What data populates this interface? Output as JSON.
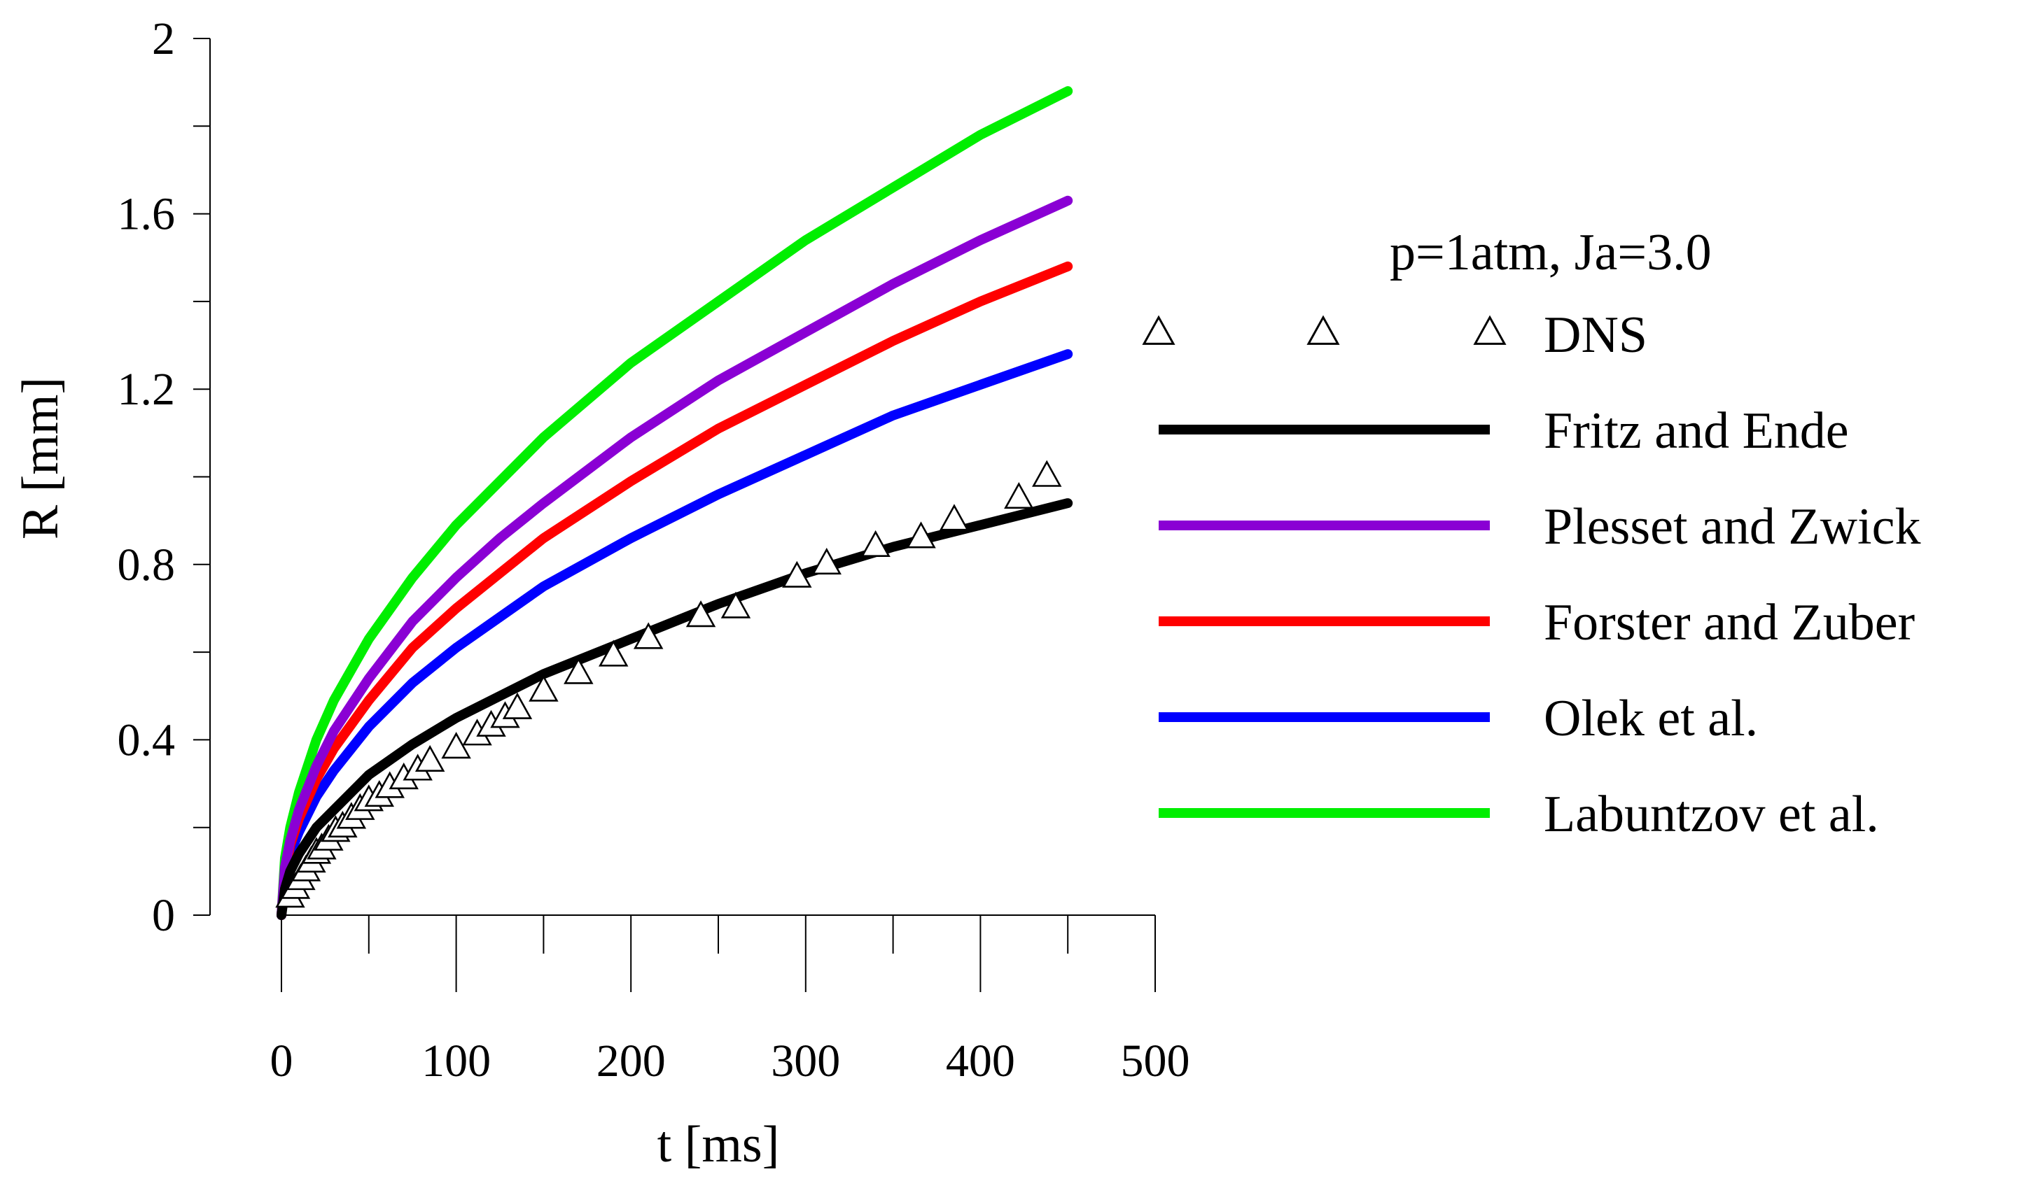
{
  "chart_data": {
    "type": "line",
    "title": "",
    "xlabel": "t [ms]",
    "ylabel": "R [mm]",
    "xlim": [
      0,
      500
    ],
    "ylim": [
      0,
      2
    ],
    "xticks": [
      0,
      100,
      200,
      300,
      400,
      500
    ],
    "xtick_labels": [
      "0",
      "100",
      "200",
      "300",
      "400",
      "500"
    ],
    "xminor": [
      50,
      150,
      250,
      350,
      450
    ],
    "yticks": [
      0,
      0.4,
      0.8,
      1.2,
      1.6,
      2
    ],
    "ytick_labels": [
      "0",
      "0.4",
      "0.8",
      "1.2",
      "1.6",
      "2"
    ],
    "yminor": [
      0.2,
      0.6,
      1.0,
      1.4,
      1.8
    ],
    "annotation": "p=1atm, Ja=3.0",
    "legend_position": "right",
    "series": [
      {
        "name": "DNS",
        "kind": "markers",
        "marker": "triangle",
        "color": "#000000",
        "points": [
          [
            5,
            0.04
          ],
          [
            8,
            0.06
          ],
          [
            11,
            0.08
          ],
          [
            14,
            0.1
          ],
          [
            17,
            0.12
          ],
          [
            20,
            0.14
          ],
          [
            23,
            0.15
          ],
          [
            27,
            0.17
          ],
          [
            31,
            0.19
          ],
          [
            35,
            0.2
          ],
          [
            40,
            0.22
          ],
          [
            45,
            0.24
          ],
          [
            50,
            0.26
          ],
          [
            56,
            0.27
          ],
          [
            62,
            0.29
          ],
          [
            70,
            0.31
          ],
          [
            78,
            0.33
          ],
          [
            85,
            0.35
          ],
          [
            100,
            0.38
          ],
          [
            112,
            0.41
          ],
          [
            120,
            0.43
          ],
          [
            128,
            0.45
          ],
          [
            135,
            0.47
          ],
          [
            150,
            0.51
          ],
          [
            170,
            0.55
          ],
          [
            190,
            0.59
          ],
          [
            210,
            0.63
          ],
          [
            240,
            0.68
          ],
          [
            260,
            0.7
          ],
          [
            295,
            0.77
          ],
          [
            312,
            0.8
          ],
          [
            340,
            0.84
          ],
          [
            366,
            0.86
          ],
          [
            385,
            0.9
          ],
          [
            422,
            0.95
          ],
          [
            438,
            1.0
          ]
        ]
      },
      {
        "name": "Fritz and Ende",
        "kind": "line",
        "color": "#000000",
        "x": [
          0,
          2,
          5,
          10,
          20,
          30,
          50,
          75,
          100,
          125,
          150,
          200,
          250,
          300,
          350,
          400,
          450
        ],
        "values": [
          0,
          0.06,
          0.1,
          0.14,
          0.2,
          0.24,
          0.32,
          0.39,
          0.45,
          0.5,
          0.55,
          0.63,
          0.71,
          0.78,
          0.84,
          0.89,
          0.94
        ]
      },
      {
        "name": "Plesset and Zwick",
        "kind": "line",
        "color": "#8a00d4",
        "x": [
          0,
          2,
          5,
          10,
          20,
          30,
          50,
          75,
          100,
          125,
          150,
          200,
          250,
          300,
          350,
          400,
          450
        ],
        "values": [
          0,
          0.11,
          0.17,
          0.24,
          0.34,
          0.42,
          0.54,
          0.67,
          0.77,
          0.86,
          0.94,
          1.09,
          1.22,
          1.33,
          1.44,
          1.54,
          1.63
        ]
      },
      {
        "name": "Forster and Zuber",
        "kind": "line",
        "color": "#ff0000",
        "x": [
          0,
          2,
          5,
          10,
          20,
          30,
          50,
          75,
          100,
          125,
          150,
          200,
          250,
          300,
          350,
          400,
          450
        ],
        "values": [
          0,
          0.1,
          0.16,
          0.22,
          0.31,
          0.38,
          0.49,
          0.61,
          0.7,
          0.78,
          0.86,
          0.99,
          1.11,
          1.21,
          1.31,
          1.4,
          1.48
        ]
      },
      {
        "name": "Olek et al.",
        "kind": "line",
        "color": "#0000ff",
        "x": [
          0,
          2,
          5,
          10,
          20,
          30,
          50,
          75,
          100,
          125,
          150,
          200,
          250,
          300,
          350,
          400,
          450
        ],
        "values": [
          0,
          0.09,
          0.14,
          0.19,
          0.27,
          0.33,
          0.43,
          0.53,
          0.61,
          0.68,
          0.75,
          0.86,
          0.96,
          1.05,
          1.14,
          1.21,
          1.28
        ]
      },
      {
        "name": "Labuntzov et al.",
        "kind": "line",
        "color": "#00ee00",
        "x": [
          0,
          2,
          5,
          10,
          20,
          30,
          50,
          75,
          100,
          125,
          150,
          200,
          250,
          300,
          350,
          400,
          450
        ],
        "values": [
          0,
          0.13,
          0.2,
          0.28,
          0.4,
          0.49,
          0.63,
          0.77,
          0.89,
          0.99,
          1.09,
          1.26,
          1.4,
          1.54,
          1.66,
          1.78,
          1.88
        ]
      }
    ]
  }
}
